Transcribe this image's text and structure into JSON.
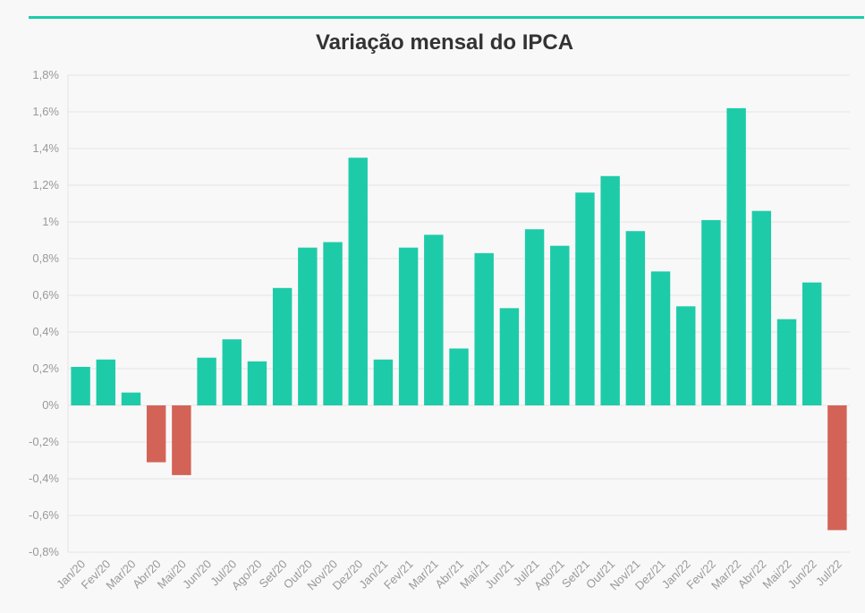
{
  "colors": {
    "accent": "#1ecba9",
    "positive": "#1ecba9",
    "negative": "#d36356",
    "grid": "#e4e4e4",
    "tick_text": "#999999",
    "title_text": "#333333",
    "background": "#f8f8f8"
  },
  "chart_data": {
    "type": "bar",
    "title": "Variação mensal do IPCA",
    "xlabel": "",
    "ylabel": "",
    "ylim": [
      -0.8,
      1.8
    ],
    "grid": true,
    "legend": "none",
    "y_ticks": [
      {
        "value": 1.8,
        "label": "1,8%"
      },
      {
        "value": 1.6,
        "label": "1,6%"
      },
      {
        "value": 1.4,
        "label": "1,4%"
      },
      {
        "value": 1.2,
        "label": "1,2%"
      },
      {
        "value": 1.0,
        "label": "1%"
      },
      {
        "value": 0.8,
        "label": "0,8%"
      },
      {
        "value": 0.6,
        "label": "0,6%"
      },
      {
        "value": 0.4,
        "label": "0,4%"
      },
      {
        "value": 0.2,
        "label": "0,2%"
      },
      {
        "value": 0.0,
        "label": "0%"
      },
      {
        "value": -0.2,
        "label": "-0,2%"
      },
      {
        "value": -0.4,
        "label": "-0,4%"
      },
      {
        "value": -0.6,
        "label": "-0,6%"
      },
      {
        "value": -0.8,
        "label": "-0,8%"
      }
    ],
    "categories": [
      "Jan/20",
      "Fev/20",
      "Mar/20",
      "Abr/20",
      "Mai/20",
      "Jun/20",
      "Jul/20",
      "Ago/20",
      "Set/20",
      "Out/20",
      "Nov/20",
      "Dez/20",
      "Jan/21",
      "Fev/21",
      "Mar/21",
      "Abr/21",
      "Mai/21",
      "Jun/21",
      "Jul/21",
      "Ago/21",
      "Set/21",
      "Out/21",
      "Nov/21",
      "Dez/21",
      "Jan/22",
      "Fev/22",
      "Mar/22",
      "Abr/22",
      "Mai/22",
      "Jun/22",
      "Jul/22"
    ],
    "values": [
      0.21,
      0.25,
      0.07,
      -0.31,
      -0.38,
      0.26,
      0.36,
      0.24,
      0.64,
      0.86,
      0.89,
      1.35,
      0.25,
      0.86,
      0.93,
      0.31,
      0.83,
      0.53,
      0.96,
      0.87,
      1.16,
      1.25,
      0.95,
      0.73,
      0.54,
      1.01,
      1.62,
      1.06,
      0.47,
      0.67,
      -0.68
    ]
  }
}
